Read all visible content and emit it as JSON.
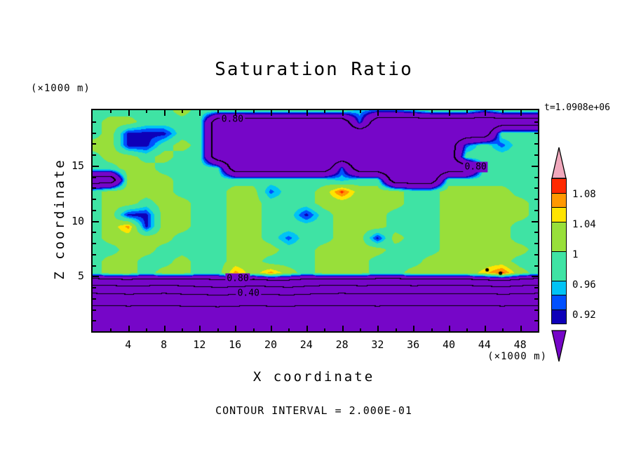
{
  "title": "Saturation Ratio",
  "annotations": {
    "time_label": "t=1.0908e+06",
    "contour_interval": "CONTOUR INTERVAL = 2.000E-01",
    "y_units": "(×1000 m)",
    "x_units": "(×1000 m)"
  },
  "axes": {
    "x": {
      "label": "X coordinate",
      "min": 0,
      "max": 50,
      "major_ticks": [
        4,
        8,
        12,
        16,
        20,
        24,
        28,
        32,
        36,
        40,
        44,
        48
      ],
      "minor_step": 2
    },
    "z": {
      "label": "Z coordinate",
      "min": 0,
      "max": 20,
      "major_ticks": [
        5,
        10,
        15
      ],
      "minor_step": 1
    }
  },
  "colorbar": {
    "vmin": 0.9,
    "vmax": 1.1,
    "top_arrow_color": "#F0A8BC",
    "bottom_arrow_color": "#7606C8",
    "segments": [
      {
        "color": "#FF2A00",
        "span": 0.02
      },
      {
        "color": "#FF9800",
        "span": 0.02
      },
      {
        "color": "#FFE400",
        "span": 0.02
      },
      {
        "color": "#98DF3A",
        "span": 0.04
      },
      {
        "color": "#3FE3A4",
        "span": 0.04
      },
      {
        "color": "#00C3F5",
        "span": 0.02
      },
      {
        "color": "#0050FF",
        "span": 0.02
      },
      {
        "color": "#0E00B8",
        "span": 0.02
      }
    ],
    "labels": [
      {
        "text": "1.08",
        "value": 1.08
      },
      {
        "text": "1.04",
        "value": 1.04
      },
      {
        "text": "1",
        "value": 1.0
      },
      {
        "text": "0.96",
        "value": 0.96
      },
      {
        "text": "0.92",
        "value": 0.92
      }
    ]
  },
  "chart_data": {
    "type": "heatmap",
    "title": "Saturation Ratio",
    "xlabel": "X coordinate (×1000 m)",
    "ylabel": "Z coordinate (×1000 m)",
    "x_range": [
      0,
      50
    ],
    "z_range": [
      0,
      20
    ],
    "contour_interval": 0.2,
    "contour_levels": [
      0.2,
      0.4,
      0.6,
      0.8
    ],
    "contour_labels": [
      {
        "text": "0.80",
        "x": 15.7,
        "z": 19.15
      },
      {
        "text": "0.80",
        "x": 43.0,
        "z": 14.85
      },
      {
        "text": "0.80",
        "x": 16.3,
        "z": 4.75
      },
      {
        "text": "0.40",
        "x": 17.5,
        "z": 3.4
      }
    ],
    "spots": [
      {
        "x": 44.3,
        "z": 5.55
      },
      {
        "x": 45.8,
        "z": 5.25
      }
    ],
    "bands": [
      {
        "max": 0.9,
        "color": "#7606C8"
      },
      {
        "max": 0.92,
        "color": "#0E00B8"
      },
      {
        "max": 0.94,
        "color": "#0050FF"
      },
      {
        "max": 0.96,
        "color": "#00C3F5"
      },
      {
        "max": 1.0,
        "color": "#3FE3A4"
      },
      {
        "max": 1.04,
        "color": "#98DF3A"
      },
      {
        "max": 1.06,
        "color": "#FFE400"
      },
      {
        "max": 1.08,
        "color": "#FF9800"
      },
      {
        "max": 1.1,
        "color": "#FF2A00"
      },
      {
        "max": 99,
        "color": "#F0A8BC"
      }
    ],
    "grid": {
      "note": "rows ordered z=20 (top) to z=0 (bottom), columns x=0..50 step 2",
      "values": [
        [
          0.98,
          0.98,
          0.98,
          0.98,
          0.98,
          1.02,
          0.98,
          0.98,
          0.98,
          0.98,
          0.98,
          0.98,
          0.98,
          0.98,
          0.98,
          0.95,
          0.93,
          0.93,
          0.95,
          0.98,
          0.98,
          0.98,
          0.93,
          0.98,
          0.98,
          0.98
        ],
        [
          0.98,
          1.02,
          1.02,
          0.98,
          0.98,
          0.98,
          0.98,
          0.72,
          0.72,
          0.72,
          0.72,
          0.72,
          0.72,
          0.72,
          0.72,
          0.93,
          0.72,
          0.72,
          0.72,
          0.72,
          0.72,
          0.72,
          0.72,
          0.72,
          0.72,
          0.72
        ],
        [
          0.98,
          1.02,
          0.91,
          0.91,
          0.91,
          0.98,
          0.98,
          0.72,
          0.72,
          0.72,
          0.72,
          0.72,
          0.72,
          0.72,
          0.72,
          0.72,
          0.72,
          0.72,
          0.72,
          0.72,
          0.72,
          0.72,
          0.72,
          0.98,
          0.98,
          0.98
        ],
        [
          1.02,
          1.02,
          0.91,
          0.91,
          0.98,
          1.02,
          0.98,
          0.72,
          0.72,
          0.72,
          0.72,
          0.72,
          0.72,
          0.72,
          0.72,
          0.72,
          0.72,
          0.72,
          0.72,
          0.72,
          0.72,
          0.93,
          0.98,
          0.93,
          0.98,
          0.98
        ],
        [
          0.98,
          1.02,
          1.02,
          0.98,
          1.02,
          0.98,
          0.98,
          0.72,
          0.72,
          0.72,
          0.72,
          0.72,
          0.72,
          0.72,
          0.72,
          0.72,
          0.72,
          0.72,
          0.72,
          0.72,
          0.72,
          0.98,
          0.98,
          0.98,
          0.98,
          0.98
        ],
        [
          0.98,
          0.98,
          1.02,
          1.02,
          0.98,
          0.98,
          0.98,
          0.98,
          0.72,
          0.72,
          0.72,
          0.72,
          0.72,
          0.72,
          0.93,
          0.72,
          0.72,
          0.72,
          0.72,
          0.72,
          0.72,
          0.72,
          0.98,
          0.98,
          0.98,
          0.98
        ],
        [
          0.72,
          0.72,
          1.02,
          1.02,
          1.02,
          0.98,
          0.98,
          0.98,
          0.98,
          0.98,
          0.98,
          0.98,
          0.98,
          0.98,
          0.95,
          0.98,
          0.98,
          0.72,
          0.72,
          0.72,
          0.98,
          0.98,
          0.98,
          0.98,
          0.98,
          0.98
        ],
        [
          0.98,
          1.02,
          1.02,
          1.02,
          1.02,
          0.98,
          0.98,
          0.98,
          1.02,
          1.02,
          0.93,
          0.98,
          0.98,
          1.02,
          1.09,
          1.02,
          1.02,
          1.02,
          0.98,
          0.98,
          1.02,
          1.02,
          1.02,
          1.02,
          0.98,
          0.98
        ],
        [
          0.98,
          1.02,
          1.02,
          0.98,
          1.02,
          1.02,
          0.98,
          0.98,
          1.02,
          1.02,
          0.98,
          0.98,
          0.98,
          1.02,
          1.02,
          1.02,
          1.02,
          1.02,
          0.98,
          0.98,
          1.02,
          1.02,
          1.02,
          1.02,
          1.02,
          0.98
        ],
        [
          0.98,
          1.02,
          0.91,
          0.91,
          1.02,
          1.02,
          0.98,
          0.98,
          1.02,
          1.02,
          0.98,
          0.98,
          0.91,
          0.98,
          1.02,
          1.02,
          1.02,
          0.98,
          0.98,
          0.98,
          1.02,
          1.02,
          1.02,
          1.02,
          1.02,
          0.98
        ],
        [
          0.98,
          1.02,
          1.07,
          0.91,
          1.02,
          1.02,
          0.98,
          0.98,
          1.02,
          1.02,
          0.98,
          0.98,
          0.98,
          0.98,
          1.02,
          1.02,
          1.02,
          0.98,
          0.98,
          0.98,
          1.02,
          1.02,
          1.02,
          1.02,
          0.98,
          0.98
        ],
        [
          0.98,
          1.02,
          1.02,
          1.02,
          1.02,
          0.98,
          0.98,
          0.98,
          1.02,
          1.02,
          0.98,
          0.93,
          0.98,
          0.98,
          1.02,
          1.02,
          0.91,
          1.02,
          0.98,
          0.98,
          1.02,
          1.02,
          1.02,
          1.02,
          0.98,
          0.98
        ],
        [
          0.98,
          0.98,
          1.02,
          1.02,
          0.98,
          0.98,
          0.98,
          0.98,
          1.02,
          1.02,
          1.02,
          0.98,
          0.98,
          1.02,
          1.02,
          1.02,
          1.02,
          0.98,
          0.98,
          0.98,
          1.02,
          1.02,
          1.02,
          1.02,
          1.02,
          0.98
        ],
        [
          0.98,
          1.02,
          1.02,
          0.98,
          0.98,
          1.02,
          0.98,
          0.98,
          1.02,
          1.02,
          0.98,
          0.98,
          0.98,
          1.02,
          1.02,
          1.02,
          0.98,
          0.98,
          0.98,
          1.02,
          1.02,
          1.02,
          1.02,
          1.02,
          0.98,
          0.98
        ],
        [
          0.98,
          1.02,
          1.02,
          0.98,
          1.02,
          1.02,
          0.98,
          0.98,
          1.07,
          1.02,
          1.07,
          1.02,
          0.98,
          1.02,
          1.02,
          1.02,
          0.98,
          0.98,
          1.02,
          1.02,
          1.02,
          1.02,
          1.05,
          1.09,
          1.02,
          0.98
        ],
        [
          0.62,
          0.63,
          0.65,
          0.64,
          0.62,
          0.64,
          0.66,
          0.68,
          0.67,
          0.64,
          0.66,
          0.68,
          0.65,
          0.63,
          0.62,
          0.64,
          0.63,
          0.62,
          0.64,
          0.63,
          0.62,
          0.63,
          0.65,
          0.67,
          0.64,
          0.62
        ],
        [
          0.34,
          0.35,
          0.36,
          0.35,
          0.34,
          0.36,
          0.37,
          0.38,
          0.37,
          0.36,
          0.37,
          0.38,
          0.36,
          0.35,
          0.34,
          0.35,
          0.36,
          0.35,
          0.34,
          0.35,
          0.36,
          0.35,
          0.34,
          0.36,
          0.35,
          0.34
        ],
        [
          0.17,
          0.17,
          0.18,
          0.17,
          0.17,
          0.18,
          0.18,
          0.19,
          0.18,
          0.17,
          0.18,
          0.18,
          0.17,
          0.17,
          0.17,
          0.17,
          0.18,
          0.17,
          0.17,
          0.17,
          0.17,
          0.17,
          0.17,
          0.18,
          0.17,
          0.17
        ],
        [
          0.1,
          0.1,
          0.1,
          0.1,
          0.1,
          0.1,
          0.1,
          0.1,
          0.1,
          0.1,
          0.1,
          0.1,
          0.1,
          0.1,
          0.1,
          0.1,
          0.1,
          0.1,
          0.1,
          0.1,
          0.1,
          0.1,
          0.1,
          0.1,
          0.1,
          0.1
        ],
        [
          0.06,
          0.06,
          0.06,
          0.06,
          0.06,
          0.06,
          0.06,
          0.06,
          0.06,
          0.06,
          0.06,
          0.06,
          0.06,
          0.06,
          0.06,
          0.06,
          0.06,
          0.06,
          0.06,
          0.06,
          0.06,
          0.06,
          0.06,
          0.06,
          0.06,
          0.06
        ]
      ]
    }
  }
}
